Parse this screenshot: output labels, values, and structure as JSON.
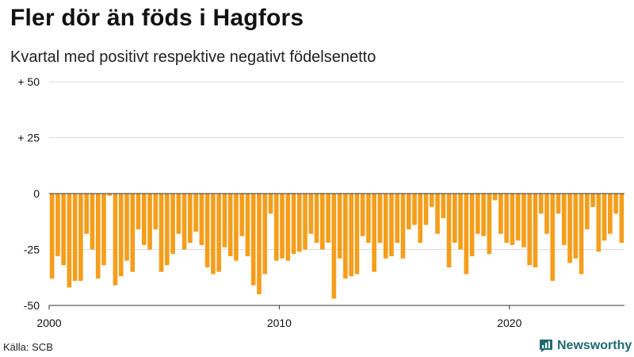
{
  "chart_data": {
    "type": "bar",
    "title": "Fler dör än föds i Hagfors",
    "subtitle": "Kvartal med positivt respektive negativt födelsenetto",
    "source": "Källa: SCB",
    "brand": "Newsworthy",
    "ylim": [
      -50,
      50
    ],
    "y_ticks": [
      {
        "value": 50,
        "label": "+ 50"
      },
      {
        "value": 25,
        "label": "+ 25"
      },
      {
        "value": 0,
        "label": "0"
      },
      {
        "value": -25,
        "label": "-25"
      },
      {
        "value": -50,
        "label": "-50"
      }
    ],
    "x_ticks": [
      {
        "index": 0,
        "label": "2000"
      },
      {
        "index": 40,
        "label": "2010"
      },
      {
        "index": 80,
        "label": "2020"
      }
    ],
    "start_period": "2000 Q1",
    "bar_color": "#f59e1b",
    "axis_color": "#333333",
    "grid_color": "#dddddd",
    "values": [
      -38,
      -28,
      -32,
      -42,
      -39,
      -39,
      -18,
      -25,
      -38,
      -32,
      -1,
      -41,
      -37,
      -30,
      -35,
      -16,
      -23,
      -25,
      -16,
      -35,
      -32,
      -27,
      -18,
      -25,
      -22,
      -17,
      -23,
      -33,
      -36,
      -35,
      -24,
      -28,
      -30,
      -19,
      -28,
      -41,
      -45,
      -36,
      -9,
      -30,
      -29,
      -30,
      -27,
      -26,
      -25,
      -18,
      -22,
      -25,
      -22,
      -47,
      -29,
      -38,
      -37,
      -36,
      -19,
      -22,
      -35,
      -22,
      -29,
      -28,
      -22,
      -29,
      -16,
      -14,
      -22,
      -14,
      -6,
      -18,
      -11,
      -33,
      -22,
      -25,
      -36,
      -28,
      -18,
      -19,
      -27,
      -3,
      -18,
      -22,
      -23,
      -21,
      -24,
      -32,
      -33,
      -9,
      -18,
      -39,
      -9,
      -23,
      -31,
      -29,
      -36,
      -16,
      -6,
      -26,
      -21,
      -18,
      -9,
      -22
    ]
  }
}
